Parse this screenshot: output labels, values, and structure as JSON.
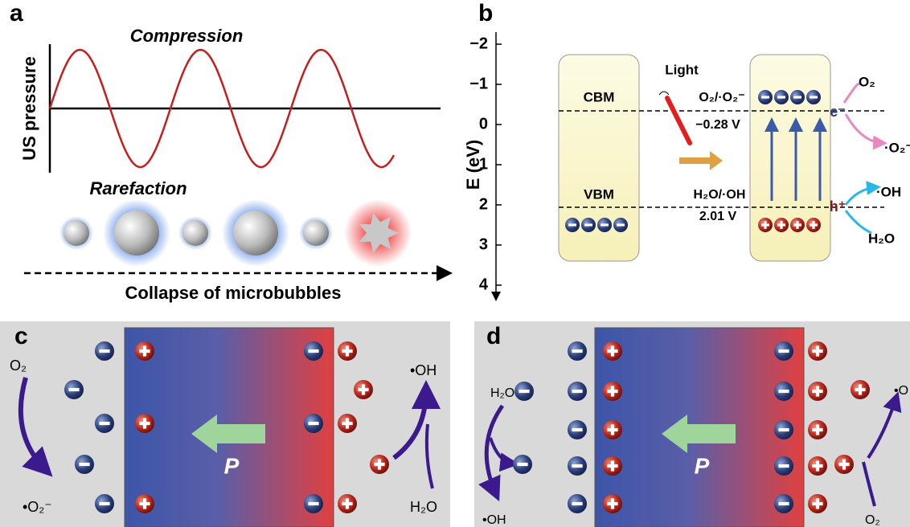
{
  "panels": {
    "a": {
      "label": "a",
      "top_label": "Compression",
      "y_label": "US pressure",
      "bottom_label": "Rarefaction",
      "caption": "Collapse of microbubbles"
    },
    "b": {
      "label": "b",
      "y_label": "E (eV)",
      "yticks": [
        {
          "value": -2,
          "label": "−2"
        },
        {
          "value": -1,
          "label": "−1"
        },
        0,
        1,
        2,
        3,
        4
      ],
      "light": "Light",
      "cbm": "CBM",
      "vbm": "VBM",
      "o2_couple": "O₂/·O₂⁻",
      "o2_potential": "−0.28 V",
      "h2o_couple": "H₂O/·OH",
      "h2o_potential": "2.01 V",
      "electron": "e⁻",
      "hole": "h⁺",
      "o2": "O₂",
      "o2_radical": "·O₂⁻",
      "oh": "·OH",
      "h2o": "H₂O"
    },
    "c": {
      "label": "c",
      "polarization": "P",
      "o2": "O₂",
      "o2_radical": "•O₂⁻",
      "oh": "•OH",
      "h2o": "H₂O"
    },
    "d": {
      "label": "d",
      "polarization": "P",
      "h2o": "H₂O",
      "oh": "•OH",
      "oh_right": "•O",
      "o2": "O₂"
    }
  }
}
